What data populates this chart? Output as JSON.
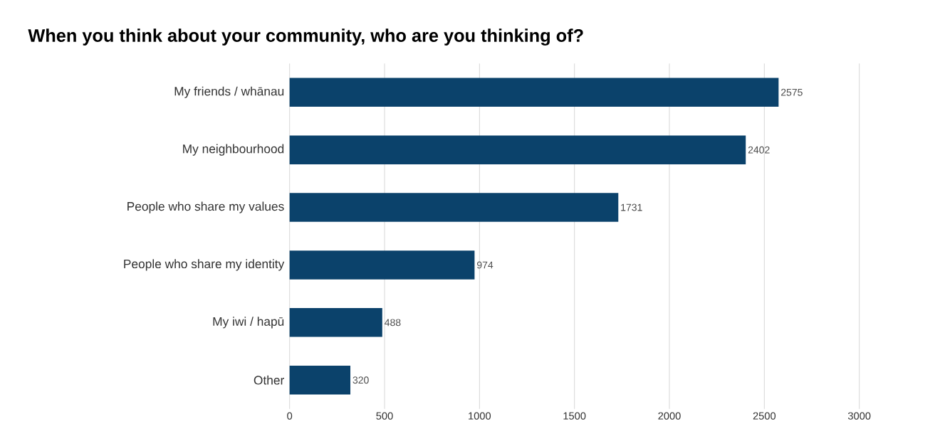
{
  "chart_data": {
    "type": "bar",
    "orientation": "horizontal",
    "title": "When you think about your community, who are you thinking of?",
    "categories": [
      "My friends / whānau",
      "My neighbourhood",
      "People who share my values",
      "People who share my identity",
      "My iwi / hapū",
      "Other"
    ],
    "values": [
      2575,
      2402,
      1731,
      974,
      488,
      320
    ],
    "color": "#0b426b",
    "xlim": [
      0,
      3000
    ],
    "xticks": [
      0,
      500,
      1000,
      1500,
      2000,
      2500,
      3000
    ],
    "grid": "x",
    "data_labels": true
  }
}
